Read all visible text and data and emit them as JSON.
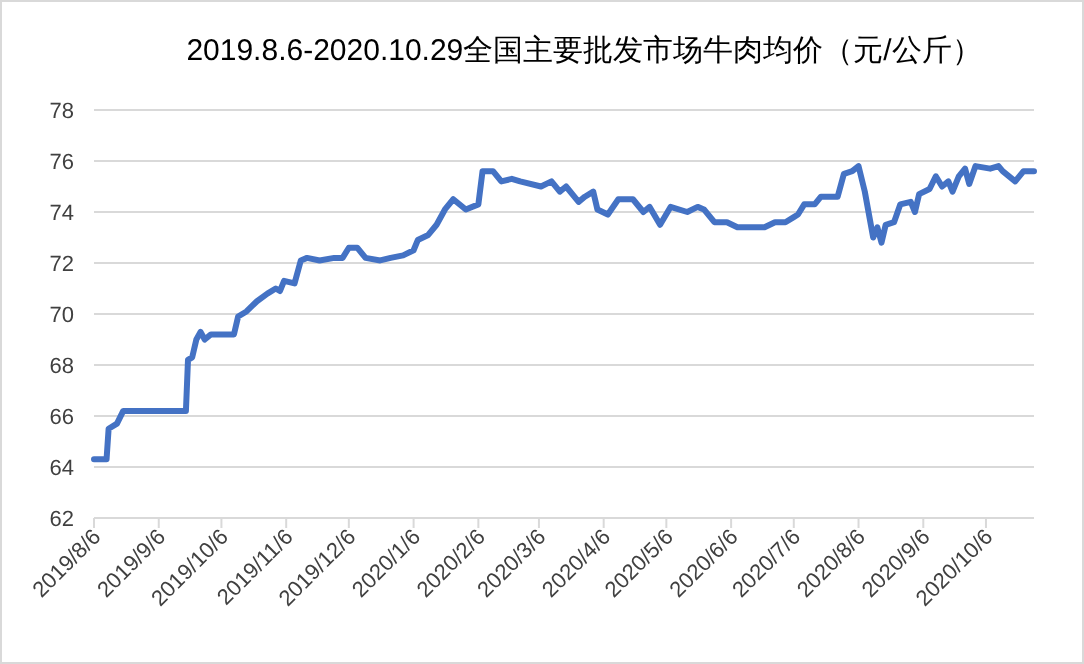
{
  "chart_data": {
    "type": "line",
    "title": "2019.8.6-2020.10.29全国主要批发市场牛肉均价（元/公斤）",
    "xlim": [
      "2019-08-06",
      "2020-10-29"
    ],
    "xticks": [
      {
        "value": "2019-08-06",
        "label": "2019/8/6"
      },
      {
        "value": "2019-09-06",
        "label": "2019/9/6"
      },
      {
        "value": "2019-10-06",
        "label": "2019/10/6"
      },
      {
        "value": "2019-11-06",
        "label": "2019/11/6"
      },
      {
        "value": "2019-12-06",
        "label": "2019/12/6"
      },
      {
        "value": "2020-01-06",
        "label": "2020/1/6"
      },
      {
        "value": "2020-02-06",
        "label": "2020/2/6"
      },
      {
        "value": "2020-03-06",
        "label": "2020/3/6"
      },
      {
        "value": "2020-04-06",
        "label": "2020/4/6"
      },
      {
        "value": "2020-05-06",
        "label": "2020/5/6"
      },
      {
        "value": "2020-06-06",
        "label": "2020/6/6"
      },
      {
        "value": "2020-07-06",
        "label": "2020/7/6"
      },
      {
        "value": "2020-08-06",
        "label": "2020/8/6"
      },
      {
        "value": "2020-09-06",
        "label": "2020/9/6"
      },
      {
        "value": "2020-10-06",
        "label": "2020/10/6"
      }
    ],
    "ylim": [
      62,
      78
    ],
    "yticks": [
      62,
      64,
      66,
      68,
      70,
      72,
      74,
      76,
      78
    ],
    "grid": "y",
    "x": [
      "2019-08-06",
      "2019-08-12",
      "2019-08-13",
      "2019-08-17",
      "2019-08-20",
      "2019-09-19",
      "2019-09-20",
      "2019-09-22",
      "2019-09-24",
      "2019-09-26",
      "2019-09-28",
      "2019-10-01",
      "2019-10-12",
      "2019-10-14",
      "2019-10-18",
      "2019-10-23",
      "2019-10-28",
      "2019-11-01",
      "2019-11-03",
      "2019-11-05",
      "2019-11-10",
      "2019-11-13",
      "2019-11-16",
      "2019-11-22",
      "2019-11-29",
      "2019-12-03",
      "2019-12-06",
      "2019-12-10",
      "2019-12-14",
      "2019-12-21",
      "2019-12-26",
      "2020-01-01",
      "2020-01-06",
      "2020-01-08",
      "2020-01-13",
      "2020-01-17",
      "2020-01-21",
      "2020-01-25",
      "2020-01-31",
      "2020-02-06",
      "2020-02-08",
      "2020-02-13",
      "2020-02-17",
      "2020-02-22",
      "2020-02-26",
      "2020-03-07",
      "2020-03-12",
      "2020-03-16",
      "2020-03-19",
      "2020-03-25",
      "2020-03-28",
      "2020-04-01",
      "2020-04-03",
      "2020-04-08",
      "2020-04-13",
      "2020-04-20",
      "2020-04-25",
      "2020-04-28",
      "2020-05-03",
      "2020-05-08",
      "2020-05-16",
      "2020-05-21",
      "2020-05-24",
      "2020-05-29",
      "2020-06-04",
      "2020-06-09",
      "2020-06-22",
      "2020-06-27",
      "2020-07-02",
      "2020-07-06",
      "2020-07-08",
      "2020-07-11",
      "2020-07-16",
      "2020-07-19",
      "2020-07-27",
      "2020-07-30",
      "2020-08-03",
      "2020-08-06",
      "2020-08-09",
      "2020-08-13",
      "2020-08-15",
      "2020-08-17",
      "2020-08-19",
      "2020-08-23",
      "2020-08-26",
      "2020-08-31",
      "2020-09-02",
      "2020-09-04",
      "2020-09-09",
      "2020-09-12",
      "2020-09-15",
      "2020-09-18",
      "2020-09-20",
      "2020-09-23",
      "2020-09-26",
      "2020-09-28",
      "2020-10-01",
      "2020-10-08",
      "2020-10-12",
      "2020-10-14",
      "2020-10-20",
      "2020-10-24",
      "2020-10-29"
    ],
    "series": [
      {
        "color": "#4472c4",
        "values": [
          64.3,
          64.3,
          65.5,
          65.7,
          66.2,
          66.2,
          68.2,
          68.3,
          69.0,
          69.3,
          69.0,
          69.2,
          69.2,
          69.9,
          70.1,
          70.5,
          70.8,
          71.0,
          70.9,
          71.3,
          71.2,
          72.1,
          72.2,
          72.1,
          72.2,
          72.2,
          72.6,
          72.6,
          72.2,
          72.1,
          72.2,
          72.3,
          72.5,
          72.9,
          73.1,
          73.5,
          74.1,
          74.5,
          74.1,
          74.3,
          75.6,
          75.6,
          75.2,
          75.3,
          75.2,
          75.0,
          75.2,
          74.8,
          75.0,
          74.4,
          74.6,
          74.8,
          74.1,
          73.9,
          74.5,
          74.5,
          74.0,
          74.2,
          73.5,
          74.2,
          74.0,
          74.2,
          74.1,
          73.6,
          73.6,
          73.4,
          73.4,
          73.6,
          73.6,
          73.8,
          73.9,
          74.3,
          74.3,
          74.6,
          74.6,
          75.5,
          75.6,
          75.8,
          74.8,
          73.0,
          73.4,
          72.8,
          73.5,
          73.6,
          74.3,
          74.4,
          74.0,
          74.7,
          74.9,
          75.4,
          75.0,
          75.2,
          74.8,
          75.4,
          75.7,
          75.1,
          75.8,
          75.7,
          75.8,
          75.6,
          75.2,
          75.6,
          75.6
        ]
      }
    ]
  }
}
